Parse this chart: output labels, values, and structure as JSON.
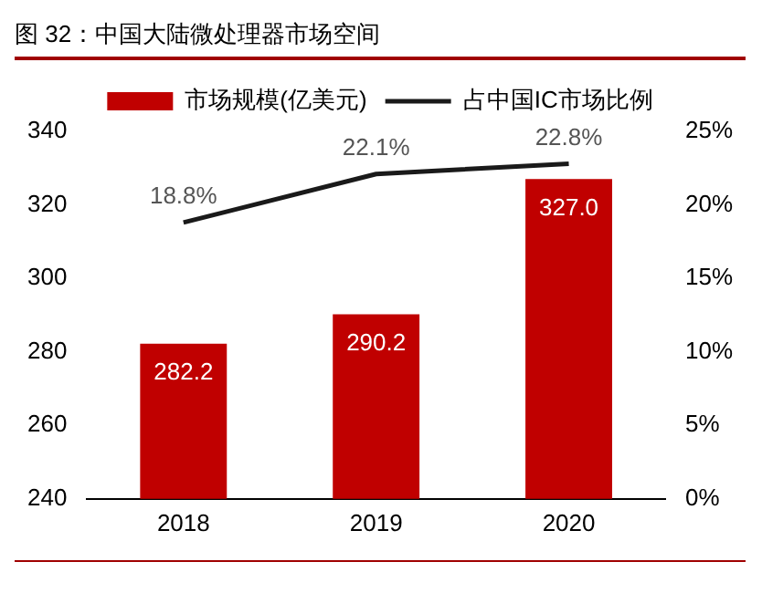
{
  "chart_data": {
    "type": "bar",
    "title": "图 32：中国大陆微处理器市场空间",
    "categories": [
      "2018",
      "2019",
      "2020"
    ],
    "series": [
      {
        "name": "市场规模(亿美元)",
        "color": "#c00000",
        "values": [
          282.2,
          290.2,
          327.0
        ],
        "value_labels": [
          "282.2",
          "290.2",
          "327.0"
        ]
      },
      {
        "name": "占中国IC市场比例",
        "type": "line",
        "axis": "y2",
        "color": "#1a1a1a",
        "values": [
          18.8,
          22.1,
          22.8
        ],
        "value_labels": [
          "18.8%",
          "22.1%",
          "22.8%"
        ]
      }
    ],
    "ylim": [
      240,
      340
    ],
    "yticks": [
      240,
      260,
      280,
      300,
      320,
      340
    ],
    "y2lim": [
      0,
      25
    ],
    "y2ticks": [
      {
        "value": 0,
        "label": "0%"
      },
      {
        "value": 5,
        "label": "5%"
      },
      {
        "value": 10,
        "label": "10%"
      },
      {
        "value": 15,
        "label": "15%"
      },
      {
        "value": 20,
        "label": "20%"
      },
      {
        "value": 25,
        "label": "25%"
      }
    ],
    "grid": false,
    "legend": "top",
    "marker": "none",
    "line_style": "solid"
  }
}
